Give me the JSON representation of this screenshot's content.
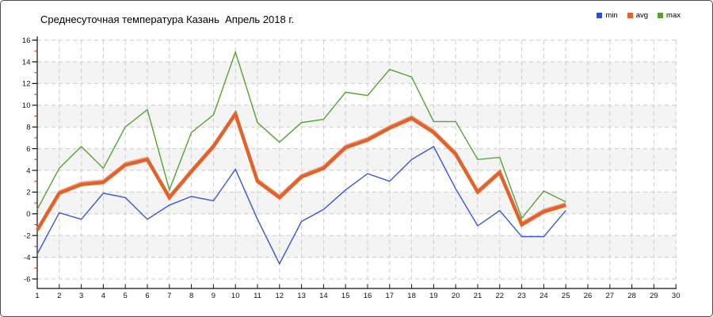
{
  "title": "Среднесуточная температура Казань  Апрель 2018 г.",
  "legend": {
    "items": [
      {
        "label": "min",
        "color": "#2a4fd0"
      },
      {
        "label": "avg",
        "color": "#e2622b"
      },
      {
        "label": "max",
        "color": "#52a433"
      }
    ]
  },
  "chart_data": {
    "type": "line",
    "title": "Среднесуточная температура Казань  Апрель 2018 г.",
    "xlabel": "",
    "ylabel": "",
    "x": [
      1,
      2,
      3,
      4,
      5,
      6,
      7,
      8,
      9,
      10,
      11,
      12,
      13,
      14,
      15,
      16,
      17,
      18,
      19,
      20,
      21,
      22,
      23,
      24,
      25
    ],
    "x_ticks": [
      1,
      2,
      3,
      4,
      5,
      6,
      7,
      8,
      9,
      10,
      11,
      12,
      13,
      14,
      15,
      16,
      17,
      18,
      19,
      20,
      21,
      22,
      23,
      24,
      25,
      26,
      27,
      28,
      29,
      30
    ],
    "xlim": [
      1,
      30
    ],
    "ylim": [
      -6,
      16
    ],
    "y_tick_step": 2,
    "y_minor_tick_step": 1,
    "grid": true,
    "legend_position": "top-right",
    "grid_color": "#cbcbcb",
    "band_color": "#f4f4f4",
    "axis_color": "#111111",
    "minor_tick_color": "#c43b2e",
    "series": [
      {
        "name": "min",
        "color": "#3a56d4",
        "width": 1.4,
        "values": [
          -3.7,
          0.1,
          -0.5,
          1.9,
          1.5,
          -0.5,
          0.8,
          1.6,
          1.2,
          4.1,
          -0.5,
          -4.6,
          -0.7,
          0.4,
          2.2,
          3.7,
          3.0,
          5.0,
          6.2,
          2.3,
          -1.1,
          0.3,
          -2.1,
          -2.1,
          0.3
        ]
      },
      {
        "name": "avg",
        "color": "#e2622b",
        "width": 4.5,
        "shadow_color": "#f4ab89",
        "values": [
          -1.5,
          1.9,
          2.7,
          2.9,
          4.5,
          5.0,
          1.5,
          3.9,
          6.2,
          9.2,
          3.0,
          1.5,
          3.4,
          4.2,
          6.1,
          6.8,
          7.9,
          8.8,
          7.5,
          5.5,
          2.0,
          3.8,
          -1.0,
          0.2,
          0.8
        ]
      },
      {
        "name": "max",
        "color": "#52a433",
        "width": 1.4,
        "values": [
          0.4,
          4.2,
          6.2,
          4.2,
          8.0,
          9.6,
          2.2,
          7.5,
          9.1,
          14.9,
          8.4,
          6.6,
          8.4,
          8.7,
          11.2,
          10.9,
          13.3,
          12.6,
          8.5,
          8.5,
          5.0,
          5.2,
          -0.4,
          2.1,
          1.1
        ]
      }
    ]
  }
}
